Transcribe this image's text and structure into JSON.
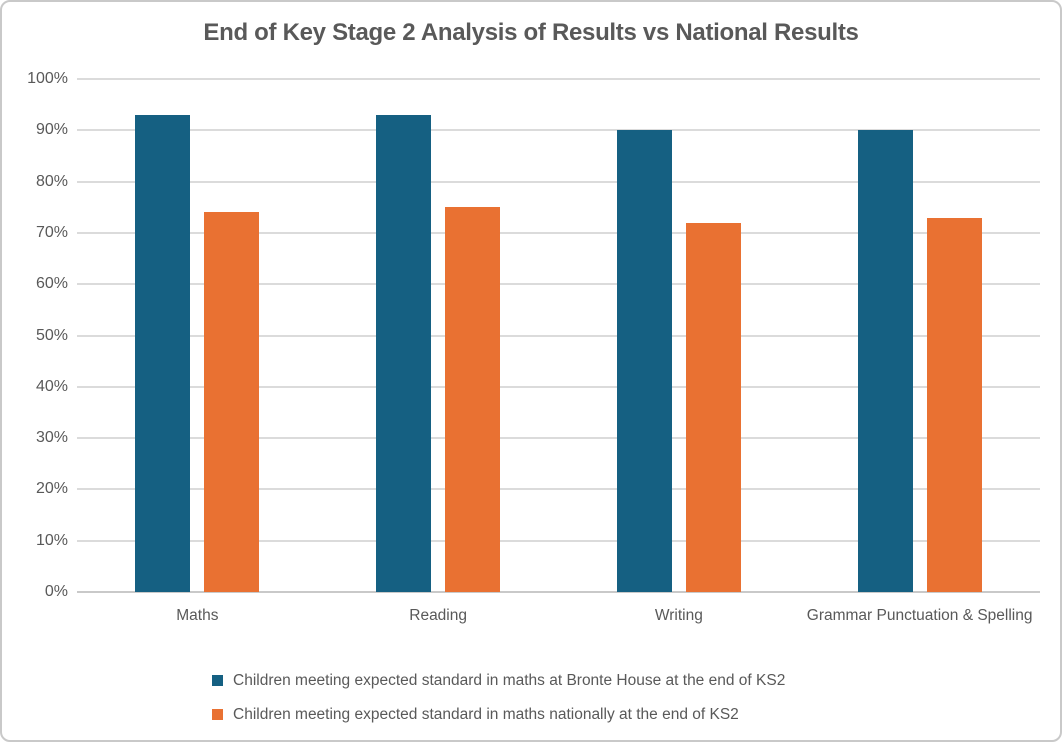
{
  "title": "End of Key Stage 2 Analysis of Results vs National Results",
  "colors": {
    "series1": "#156082",
    "series2": "#E97132",
    "text": "#595959",
    "gridline": "#DBDBDB",
    "axis_line": "#C9C9C9",
    "frame_border": "#C9C9C9",
    "background": "#FFFFFF"
  },
  "chart_data": {
    "type": "bar",
    "title": "End of Key Stage 2 Analysis of Results vs National Results",
    "categories": [
      "Maths",
      "Reading",
      "Writing",
      "Grammar Punctuation & Spelling"
    ],
    "series": [
      {
        "name": "Children meeting expected standard in maths at Bronte House at the end of KS2",
        "color": "#156082",
        "values": [
          93,
          93,
          90,
          90
        ]
      },
      {
        "name": "Children meeting expected standard in maths nationally at the end of KS2",
        "color": "#E97132",
        "values": [
          74,
          75,
          72,
          73
        ]
      }
    ],
    "xlabel": "",
    "ylabel": "",
    "ylim": [
      0,
      100
    ],
    "ytick_step": 10,
    "ytick_labels": [
      "0%",
      "10%",
      "20%",
      "30%",
      "40%",
      "50%",
      "60%",
      "70%",
      "80%",
      "90%",
      "100%"
    ],
    "grid": true,
    "legend_position": "bottom"
  }
}
